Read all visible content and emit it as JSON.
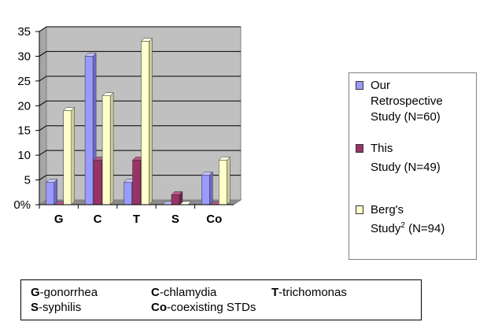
{
  "chart_data": {
    "type": "bar",
    "categories": [
      "G",
      "C",
      "T",
      "S",
      "Co"
    ],
    "ylim": [
      0,
      35
    ],
    "yticks": [
      "0%",
      "5",
      "10",
      "15",
      "20",
      "25",
      "30",
      "35"
    ],
    "series": [
      {
        "name": "Our Retrospective Study (N=60)",
        "color": "#9a9aff",
        "values": [
          4.5,
          30,
          4.5,
          0,
          6
        ]
      },
      {
        "name": "This Study (N=49)",
        "color": "#993366",
        "values": [
          0,
          9,
          9,
          2,
          0
        ]
      },
      {
        "name": "Berg's Study2 (N=94)",
        "color": "#ffffcc",
        "values": [
          19,
          22,
          33,
          0,
          9
        ]
      }
    ],
    "plot_background": "#c0c0c0",
    "grid": true
  },
  "legend": {
    "entries": [
      {
        "lines": [
          "Our",
          "Retrospective",
          "Study (N=60)"
        ]
      },
      {
        "lines": [
          "This",
          "Study (N=49)"
        ]
      },
      {
        "line1": "Berg's",
        "line2_main": "Study",
        "line2_sup": "2",
        "line2_rest": " (N=94)"
      }
    ]
  },
  "footnote": {
    "items": [
      {
        "abbr": "G",
        "desc": "-gonorrhea"
      },
      {
        "abbr": "C",
        "desc": "-chlamydia"
      },
      {
        "abbr": "T",
        "desc": "-trichomonas"
      },
      {
        "abbr": "S",
        "desc": "-syphilis"
      },
      {
        "abbr": "Co",
        "desc": "-coexisting STDs"
      }
    ]
  }
}
